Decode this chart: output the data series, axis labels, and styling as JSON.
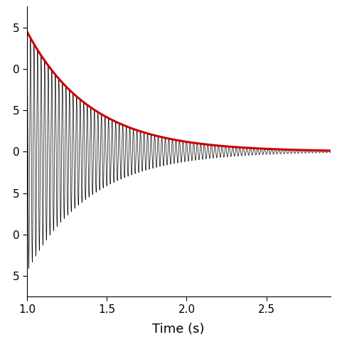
{
  "t_start": 1.0,
  "t_end": 2.9,
  "xlabel": "Time (s)",
  "xlabel_fontsize": 13,
  "xticks": [
    1.0,
    1.5,
    2.0,
    2.5
  ],
  "ytick_labels": [
    "5",
    "0",
    "5",
    "0",
    "5",
    "0",
    "5"
  ],
  "ylim": [
    -1.75,
    1.75
  ],
  "xlim": [
    1.0,
    2.9
  ],
  "signal_color": "#000000",
  "envelope_color": "#cc0000",
  "background_color": "#ffffff",
  "amplitude": 1.45,
  "decay": 2.5,
  "frequency": 45.0,
  "signal_linewidth": 0.5,
  "envelope_linewidth": 2.2,
  "figsize": [
    4.74,
    4.74
  ],
  "dpi": 100
}
